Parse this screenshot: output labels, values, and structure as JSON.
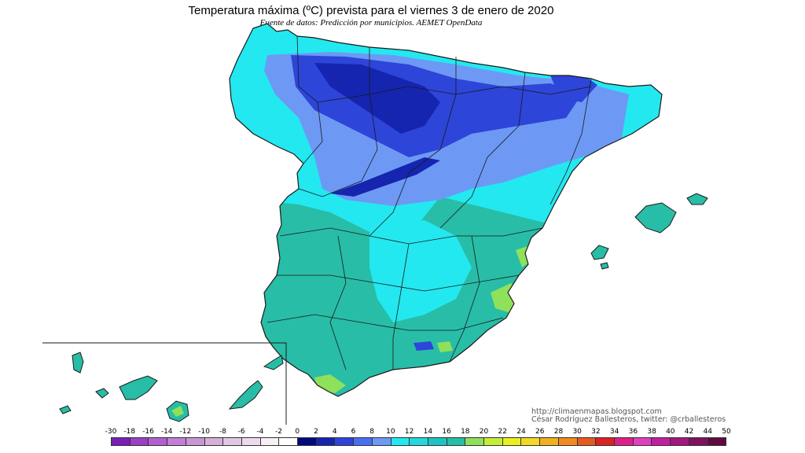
{
  "title": "Temperatura máxima (ºC) prevista para el viernes 3 de enero de 2020",
  "subtitle": "Fuente de datos: Predicción por municipios. AEMET OpenData",
  "credits": {
    "blog": "http://climaenmapas.blogspot.com",
    "author": "César Rodríguez Ballesteros, twitter: @crballesteros"
  },
  "legend": {
    "ticks": [
      "-30",
      "-18",
      "-16",
      "-14",
      "-12",
      "-10",
      "-8",
      "-6",
      "-4",
      "-2",
      "0",
      "2",
      "4",
      "6",
      "8",
      "10",
      "12",
      "14",
      "16",
      "18",
      "20",
      "22",
      "24",
      "26",
      "28",
      "30",
      "32",
      "34",
      "36",
      "38",
      "40",
      "42",
      "44",
      "50"
    ],
    "colors": [
      "#7a1fb5",
      "#9a3fc8",
      "#b35fd2",
      "#c47ed8",
      "#c896d3",
      "#d6b0d8",
      "#e0c8e2",
      "#eedaee",
      "#f6f0f6",
      "#fdfdfd",
      "#000a7a",
      "#1525b0",
      "#2d45d8",
      "#4a6ef0",
      "#6d99f5",
      "#23e8f0",
      "#22d8dc",
      "#1ec4c0",
      "#28bda6",
      "#8fe05a",
      "#c6ec3a",
      "#eaf020",
      "#f2d828",
      "#f2b020",
      "#f08a20",
      "#e65a1e",
      "#dc2222",
      "#e0208a",
      "#e040c0",
      "#c020a0",
      "#a01880",
      "#801060",
      "#600a40"
    ]
  },
  "map_legend_colors": {
    "land_mild": "#28bda6",
    "land_cyan": "#23e8f0",
    "land_cool": "#6d99f5",
    "land_cold": "#2d45d8",
    "land_coldest": "#1525b0",
    "land_warm": "#8fe05a",
    "land_warmest": "#c6ec3a",
    "border": "#1a1a1a"
  }
}
